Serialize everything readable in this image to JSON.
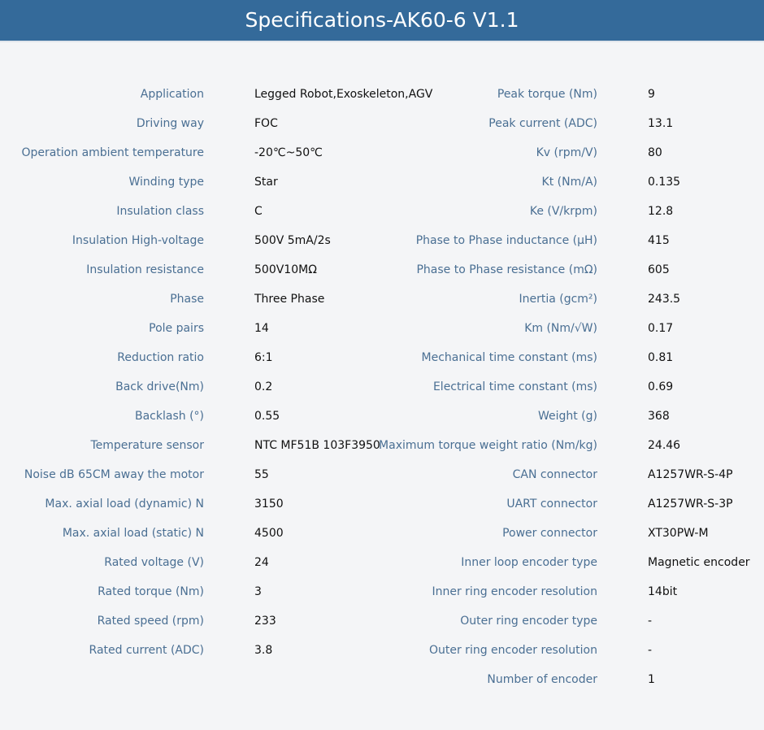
{
  "title": "Specifications-AK60-6 V1.1",
  "colors": {
    "header_bg": "#346a9a",
    "label": "#4a6f93",
    "value": "#111111",
    "background": "#f4f5f7"
  },
  "left": [
    {
      "label": "Application",
      "value": "Legged Robot,Exoskeleton,AGV"
    },
    {
      "label": "Driving way",
      "value": "FOC"
    },
    {
      "label": "Operation ambient temperature",
      "value": "-20℃~50℃"
    },
    {
      "label": "Winding type",
      "value": "Star"
    },
    {
      "label": "Insulation class",
      "value": "C"
    },
    {
      "label": "Insulation High-voltage",
      "value": "500V 5mA/2s"
    },
    {
      "label": "Insulation resistance",
      "value": "500V10MΩ"
    },
    {
      "label": "Phase",
      "value": "Three Phase"
    },
    {
      "label": "Pole pairs",
      "value": "14"
    },
    {
      "label": "Reduction ratio",
      "value": "6:1"
    },
    {
      "label": "Back drive(Nm)",
      "value": "0.2"
    },
    {
      "label": "Backlash (°)",
      "value": "0.55"
    },
    {
      "label": "Temperature sensor",
      "value": "NTC MF51B 103F3950"
    },
    {
      "label": "Noise dB 65CM away the motor",
      "value": "55"
    },
    {
      "label": "Max. axial load (dynamic) N",
      "value": "3150"
    },
    {
      "label": "Max. axial load (static) N",
      "value": "4500"
    },
    {
      "label": "Rated voltage (V)",
      "value": "24"
    },
    {
      "label": "Rated torque (Nm)",
      "value": "3"
    },
    {
      "label": "Rated speed (rpm)",
      "value": "233"
    },
    {
      "label": "Rated current (ADC)",
      "value": "3.8"
    }
  ],
  "right": [
    {
      "label": "Peak torque (Nm)",
      "value": "9"
    },
    {
      "label": "Peak current (ADC)",
      "value": "13.1"
    },
    {
      "label": "Kv (rpm/V)",
      "value": "80"
    },
    {
      "label": "Kt (Nm/A)",
      "value": "0.135"
    },
    {
      "label": "Ke (V/krpm)",
      "value": "12.8"
    },
    {
      "label": "Phase to Phase inductance (μH)",
      "value": "415"
    },
    {
      "label": "Phase to Phase resistance (mΩ)",
      "value": "605"
    },
    {
      "label": "Inertia (gcm²)",
      "value": "243.5"
    },
    {
      "label": "Km (Nm/√W)",
      "value": "0.17"
    },
    {
      "label": "Mechanical time constant (ms)",
      "value": "0.81"
    },
    {
      "label": "Electrical time constant (ms)",
      "value": "0.69"
    },
    {
      "label": "Weight (g)",
      "value": "368"
    },
    {
      "label": "Maximum torque weight ratio (Nm/kg)",
      "value": "24.46"
    },
    {
      "label": "CAN connector",
      "value": "A1257WR-S-4P"
    },
    {
      "label": "UART connector",
      "value": "A1257WR-S-3P"
    },
    {
      "label": "Power connector",
      "value": "XT30PW-M"
    },
    {
      "label": "Inner loop encoder type",
      "value": "Magnetic encoder"
    },
    {
      "label": "Inner ring encoder resolution",
      "value": "14bit"
    },
    {
      "label": "Outer ring encoder type",
      "value": "-"
    },
    {
      "label": "Outer ring encoder resolution",
      "value": "-"
    },
    {
      "label": "Number of encoder",
      "value": "1"
    }
  ]
}
